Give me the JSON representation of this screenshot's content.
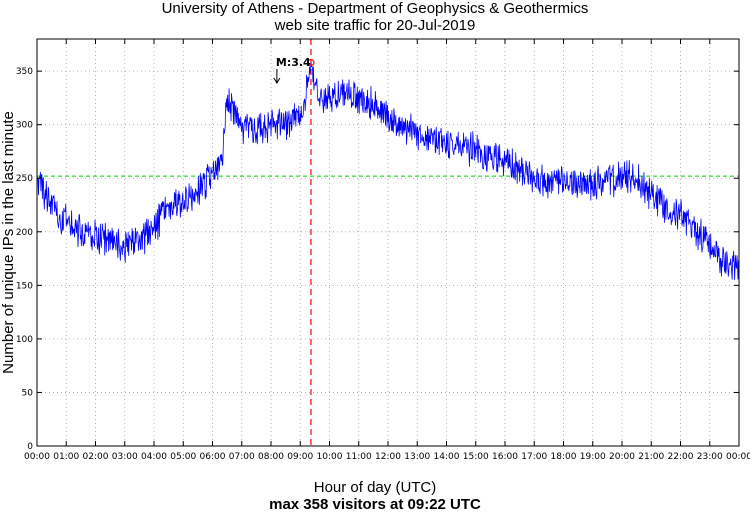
{
  "header": {
    "title": "University of Athens - Department of Geophysics & Geothermics",
    "subtitle": "web site traffic for 20-Jul-2019"
  },
  "footer": {
    "xlabel": "Hour of day (UTC)",
    "max_label": "max 358 visitors at 09:22 UTC"
  },
  "chart_data": {
    "type": "line",
    "title": "University of Athens - Department of Geophysics & Geothermics",
    "subtitle": "web site traffic for 20-Jul-2019",
    "xlabel": "Hour of day (UTC)",
    "ylabel": "Number of unique IPs in the last minute",
    "xlim": [
      "00:00",
      "24:00"
    ],
    "ylim": [
      0,
      380
    ],
    "x_tick_labels": [
      "00:00",
      "01:00",
      "02:00",
      "03:00",
      "04:00",
      "05:00",
      "06:00",
      "07:00",
      "08:00",
      "09:00",
      "10:00",
      "11:00",
      "12:00",
      "13:00",
      "14:00",
      "15:00",
      "16:00",
      "17:00",
      "18:00",
      "19:00",
      "20:00",
      "21:00",
      "22:00",
      "23:00",
      "00:00"
    ],
    "y_ticks": [
      0,
      50,
      100,
      150,
      200,
      250,
      300,
      350
    ],
    "grid": true,
    "series": [
      {
        "color": "#0000ff",
        "x": [
          "00:00",
          "00:30",
          "01:00",
          "01:30",
          "02:00",
          "02:30",
          "03:00",
          "03:30",
          "04:00",
          "04:30",
          "05:00",
          "05:30",
          "06:00",
          "06:20",
          "06:30",
          "06:45",
          "07:00",
          "07:30",
          "08:00",
          "08:30",
          "09:00",
          "09:22",
          "09:40",
          "10:00",
          "10:30",
          "11:00",
          "11:30",
          "12:00",
          "13:00",
          "14:00",
          "15:00",
          "16:00",
          "17:00",
          "17:30",
          "18:00",
          "19:00",
          "20:00",
          "20:30",
          "21:00",
          "22:00",
          "23:00",
          "23:30",
          "24:00"
        ],
        "y": [
          245,
          225,
          210,
          200,
          195,
          192,
          188,
          192,
          205,
          220,
          230,
          240,
          255,
          270,
          320,
          310,
          300,
          295,
          300,
          300,
          305,
          358,
          325,
          325,
          330,
          325,
          320,
          305,
          290,
          285,
          275,
          265,
          250,
          245,
          245,
          245,
          250,
          250,
          235,
          215,
          190,
          170,
          165
        ]
      }
    ],
    "reference_lines": [
      {
        "orientation": "horizontal",
        "value": 252,
        "color": "#00cc00",
        "style": "dashed"
      },
      {
        "orientation": "vertical",
        "value": "09:22",
        "color": "#ff0000",
        "style": "dashed"
      }
    ],
    "max_point": {
      "x": "09:22",
      "y": 358,
      "color": "#ff0000"
    },
    "annotations": [
      {
        "text": "M:3.4",
        "x": "08:10",
        "y": 352
      }
    ]
  }
}
